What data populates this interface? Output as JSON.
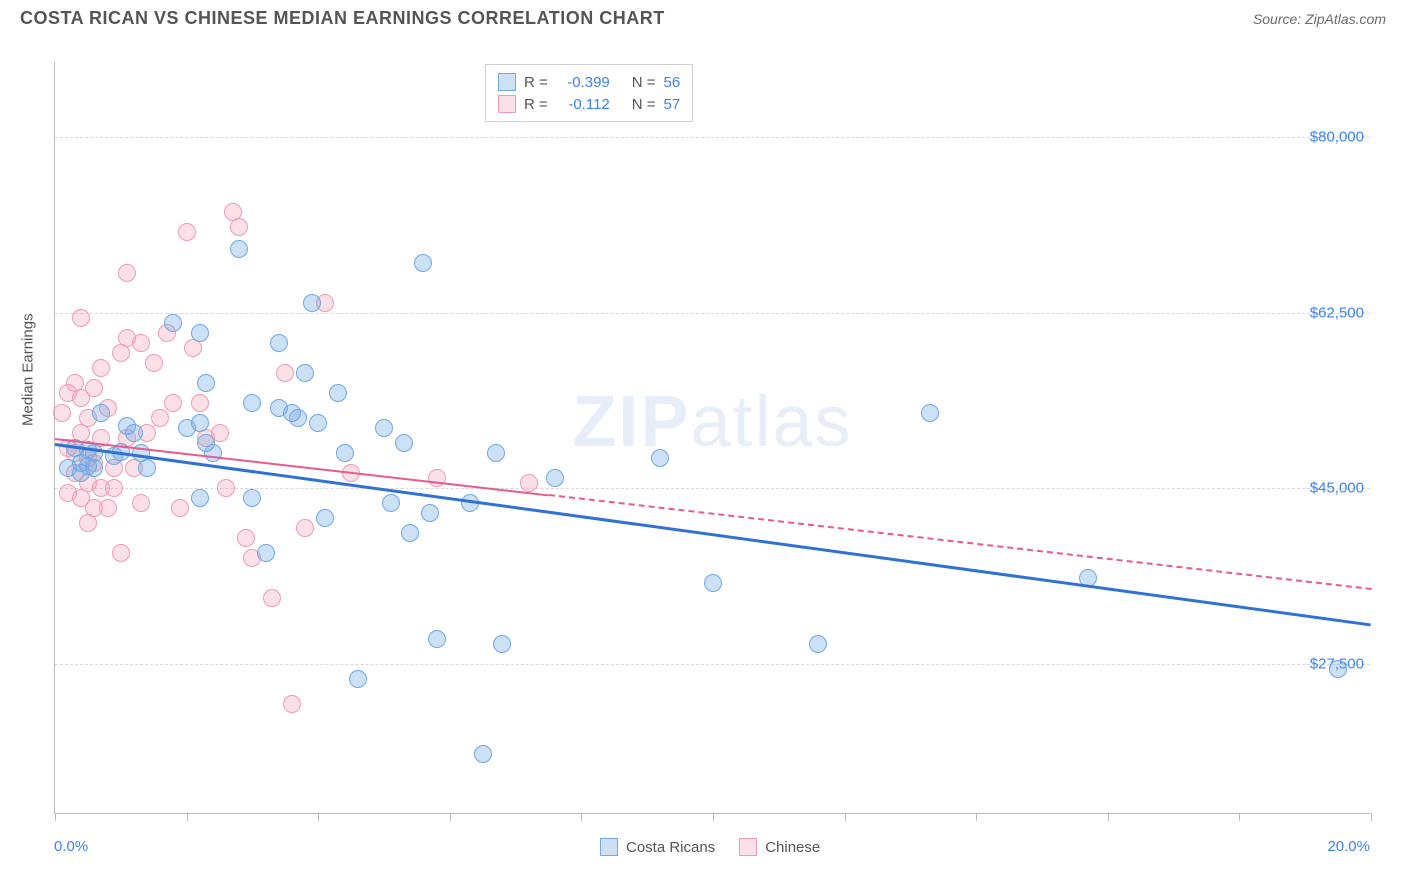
{
  "header": {
    "title": "COSTA RICAN VS CHINESE MEDIAN EARNINGS CORRELATION CHART",
    "source": "Source: ZipAtlas.com"
  },
  "watermark": {
    "bold": "ZIP",
    "rest": "atlas"
  },
  "chart": {
    "type": "scatter",
    "y_axis_title": "Median Earnings",
    "xlim": [
      0,
      20
    ],
    "ylim": [
      12500,
      87500
    ],
    "x_min_label": "0.0%",
    "x_max_label": "20.0%",
    "y_ticks": [
      {
        "value": 27500,
        "label": "$27,500"
      },
      {
        "value": 45000,
        "label": "$45,000"
      },
      {
        "value": 62500,
        "label": "$62,500"
      },
      {
        "value": 80000,
        "label": "$80,000"
      }
    ],
    "x_tick_positions": [
      0,
      2,
      4,
      6,
      8,
      10,
      12,
      14,
      16,
      18,
      20
    ],
    "series": {
      "blue": {
        "label": "Costa Ricans",
        "fill": "rgba(110, 165, 230, 0.35)",
        "stroke": "#6fa8e8",
        "point_radius": 9,
        "trend": {
          "x1": 0,
          "y1": 49500,
          "x2": 20,
          "y2": 31500,
          "color": "#2f72d4",
          "width": 3,
          "dash": "solid"
        },
        "points": [
          [
            0.2,
            47000
          ],
          [
            0.3,
            49000
          ],
          [
            0.4,
            47500
          ],
          [
            0.4,
            46500
          ],
          [
            0.5,
            48800
          ],
          [
            0.5,
            47200
          ],
          [
            0.6,
            48500
          ],
          [
            0.6,
            47000
          ],
          [
            0.7,
            52500
          ],
          [
            0.9,
            48200
          ],
          [
            1.0,
            48600
          ],
          [
            1.1,
            51200
          ],
          [
            1.2,
            50500
          ],
          [
            1.3,
            48500
          ],
          [
            1.4,
            47000
          ],
          [
            1.8,
            61500
          ],
          [
            2.0,
            51000
          ],
          [
            2.2,
            60500
          ],
          [
            2.2,
            51500
          ],
          [
            2.2,
            44000
          ],
          [
            2.3,
            55500
          ],
          [
            2.3,
            49500
          ],
          [
            2.4,
            48500
          ],
          [
            2.8,
            68800
          ],
          [
            3.0,
            53500
          ],
          [
            3.0,
            44000
          ],
          [
            3.2,
            38500
          ],
          [
            3.4,
            53000
          ],
          [
            3.4,
            59500
          ],
          [
            3.6,
            52500
          ],
          [
            3.7,
            52000
          ],
          [
            3.8,
            56500
          ],
          [
            3.9,
            63500
          ],
          [
            4.0,
            51500
          ],
          [
            4.1,
            42000
          ],
          [
            4.3,
            54500
          ],
          [
            4.4,
            48500
          ],
          [
            4.6,
            26000
          ],
          [
            5.0,
            51000
          ],
          [
            5.1,
            43500
          ],
          [
            5.3,
            49500
          ],
          [
            5.4,
            40500
          ],
          [
            5.6,
            67500
          ],
          [
            5.7,
            42500
          ],
          [
            5.8,
            30000
          ],
          [
            6.3,
            43500
          ],
          [
            6.5,
            18500
          ],
          [
            6.7,
            48500
          ],
          [
            6.8,
            29500
          ],
          [
            7.6,
            46000
          ],
          [
            9.2,
            48000
          ],
          [
            10.0,
            35500
          ],
          [
            11.6,
            29500
          ],
          [
            13.3,
            52500
          ],
          [
            15.7,
            36000
          ],
          [
            19.5,
            27000
          ]
        ]
      },
      "pink": {
        "label": "Chinese",
        "fill": "rgba(245, 165, 185, 0.35)",
        "stroke": "#f09bb2",
        "point_radius": 9,
        "trend": {
          "x1": 0,
          "y1": 50000,
          "x2": 20,
          "y2": 35000,
          "color": "#e85a8a",
          "width": 2,
          "dash": "dashed"
        },
        "trend_solid_end_x": 7.5,
        "points": [
          [
            0.1,
            52500
          ],
          [
            0.2,
            54500
          ],
          [
            0.2,
            49000
          ],
          [
            0.2,
            44500
          ],
          [
            0.3,
            55500
          ],
          [
            0.3,
            48500
          ],
          [
            0.3,
            46500
          ],
          [
            0.4,
            62000
          ],
          [
            0.4,
            54000
          ],
          [
            0.4,
            50500
          ],
          [
            0.4,
            44000
          ],
          [
            0.5,
            52000
          ],
          [
            0.5,
            48000
          ],
          [
            0.5,
            45500
          ],
          [
            0.5,
            41500
          ],
          [
            0.6,
            55000
          ],
          [
            0.6,
            47500
          ],
          [
            0.6,
            43000
          ],
          [
            0.7,
            57000
          ],
          [
            0.7,
            50000
          ],
          [
            0.7,
            45000
          ],
          [
            0.8,
            53000
          ],
          [
            0.8,
            43000
          ],
          [
            0.9,
            47000
          ],
          [
            0.9,
            45000
          ],
          [
            1.0,
            58500
          ],
          [
            1.0,
            38500
          ],
          [
            1.1,
            66500
          ],
          [
            1.1,
            60000
          ],
          [
            1.1,
            50000
          ],
          [
            1.2,
            47000
          ],
          [
            1.3,
            59500
          ],
          [
            1.3,
            43500
          ],
          [
            1.4,
            50500
          ],
          [
            1.5,
            57500
          ],
          [
            1.6,
            52000
          ],
          [
            1.7,
            60500
          ],
          [
            1.8,
            53500
          ],
          [
            1.9,
            43000
          ],
          [
            2.0,
            70500
          ],
          [
            2.1,
            59000
          ],
          [
            2.2,
            53500
          ],
          [
            2.3,
            50000
          ],
          [
            2.5,
            50500
          ],
          [
            2.6,
            45000
          ],
          [
            2.7,
            72500
          ],
          [
            2.8,
            71000
          ],
          [
            2.9,
            40000
          ],
          [
            3.0,
            38000
          ],
          [
            3.3,
            34000
          ],
          [
            3.5,
            56500
          ],
          [
            3.6,
            23500
          ],
          [
            3.8,
            41000
          ],
          [
            4.1,
            63500
          ],
          [
            4.5,
            46500
          ],
          [
            5.8,
            46000
          ],
          [
            7.2,
            45500
          ]
        ]
      }
    },
    "legend_top": {
      "rows": [
        {
          "swatch_fill": "rgba(110,165,230,0.35)",
          "swatch_stroke": "#6fa8e8",
          "r_label": "R =",
          "r_value": "-0.399",
          "n_label": "N =",
          "n_value": "56"
        },
        {
          "swatch_fill": "rgba(245,165,185,0.35)",
          "swatch_stroke": "#f09bb2",
          "r_label": "R =",
          "r_value": "-0.112",
          "n_label": "N =",
          "n_value": "57"
        }
      ]
    }
  }
}
